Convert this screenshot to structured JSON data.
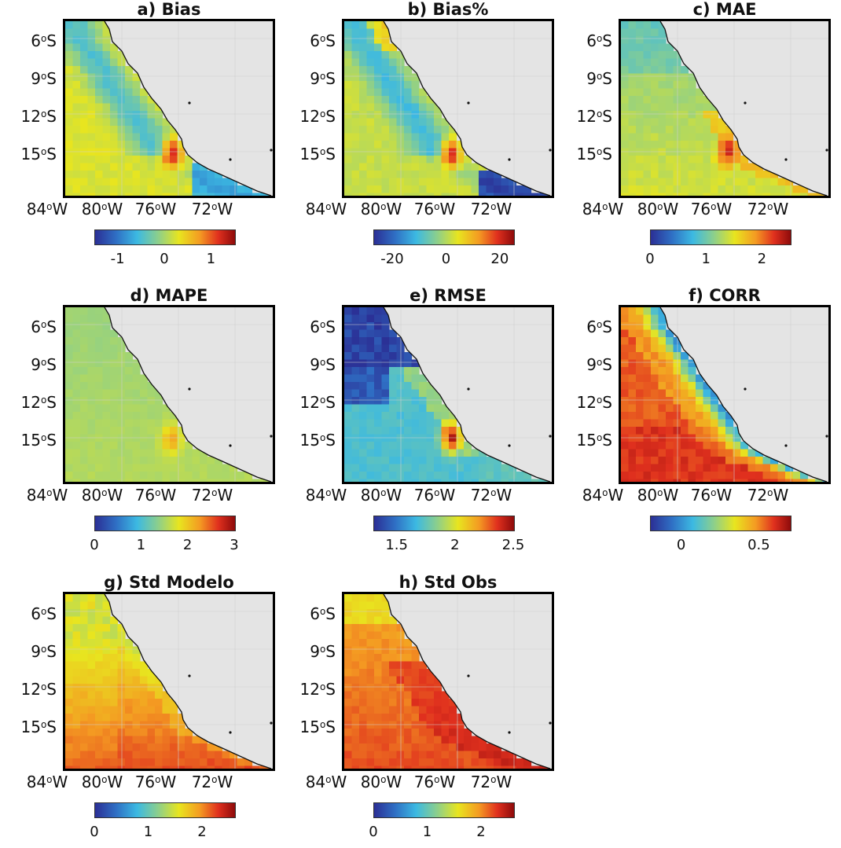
{
  "colors": {
    "land": "#e4e4e4",
    "coast": "#111111",
    "frame": "#000000",
    "scale": [
      "#2b2f95",
      "#2f6fc4",
      "#3cb9e2",
      "#8ccf8c",
      "#e8e51f",
      "#f49a22",
      "#e0301e",
      "#8e0b0b"
    ]
  },
  "axes": {
    "lat_labels": [
      {
        "deg": "6",
        "sup": "o",
        "hem": "S"
      },
      {
        "deg": "9",
        "sup": "o",
        "hem": "S"
      },
      {
        "deg": "12",
        "sup": "o",
        "hem": "S"
      },
      {
        "deg": "15",
        "sup": "o",
        "hem": "S"
      }
    ],
    "lon_labels": [
      {
        "deg": "84",
        "sup": "o",
        "hem": "W"
      },
      {
        "deg": "80",
        "sup": "o",
        "hem": "W"
      },
      {
        "deg": "76",
        "sup": "o",
        "hem": "W"
      },
      {
        "deg": "72",
        "sup": "o",
        "hem": "W"
      }
    ]
  },
  "panels": [
    {
      "title": "a) Bias",
      "palette": "diverging",
      "cbar_ticks": [
        "-1",
        "0",
        "1"
      ],
      "range": [
        -1.5,
        1.5
      ]
    },
    {
      "title": "b) Bias%",
      "palette": "diverging",
      "cbar_ticks": [
        "-20",
        "0",
        "20"
      ],
      "range": [
        -27,
        25
      ]
    },
    {
      "title": "c) MAE",
      "palette": "sequential",
      "cbar_ticks": [
        "0",
        "1",
        "2"
      ],
      "range": [
        0,
        2.5
      ]
    },
    {
      "title": "d) MAPE",
      "palette": "sequential",
      "cbar_ticks": [
        "0",
        "1",
        "2",
        "3"
      ],
      "range": [
        0,
        3
      ]
    },
    {
      "title": "e) RMSE",
      "palette": "sequential",
      "cbar_ticks": [
        "1.5",
        "2",
        "2.5"
      ],
      "range": [
        1.3,
        2.5
      ]
    },
    {
      "title": "f) CORR",
      "palette": "sequential",
      "cbar_ticks": [
        "0",
        "0.5"
      ],
      "range": [
        -0.2,
        0.7
      ]
    },
    {
      "title": "g) Std Modelo",
      "palette": "sequential",
      "cbar_ticks": [
        "0",
        "1",
        "2"
      ],
      "range": [
        0,
        2.6
      ]
    },
    {
      "title": "h) Std Obs",
      "palette": "sequential",
      "cbar_ticks": [
        "0",
        "1",
        "2"
      ],
      "range": [
        0,
        2.6
      ]
    }
  ]
}
